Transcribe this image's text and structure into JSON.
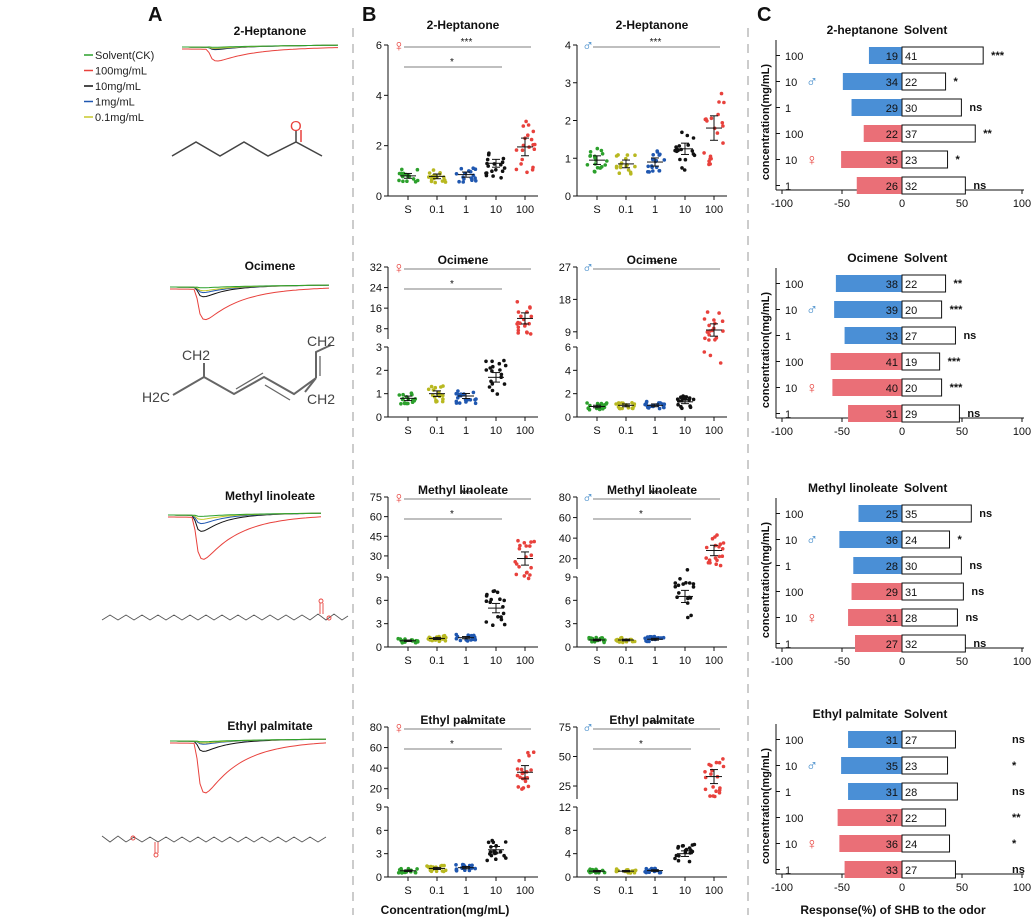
{
  "panels": {
    "A": "A",
    "B": "B",
    "C": "C"
  },
  "legend": [
    {
      "name": "Solvent(CK)",
      "color": "#2ca02c"
    },
    {
      "name": "100mg/mL",
      "color": "#e8413c"
    },
    {
      "name": "10mg/mL",
      "color": "#111111"
    },
    {
      "name": "1mg/mL",
      "color": "#1f57b0"
    },
    {
      "name": "0.1mg/mL",
      "color": "#c8c82a"
    }
  ],
  "compounds": [
    {
      "name": "2-Heptanone",
      "atom_labels": [
        "O"
      ]
    },
    {
      "name": "Ocimene",
      "atom_labels": [
        "CH2",
        "CH2",
        "H2C",
        "CH2"
      ]
    },
    {
      "name": "Methyl linoleate",
      "atom_labels": []
    },
    {
      "name": "Ethyl palmitate",
      "atom_labels": []
    }
  ],
  "symbols": {
    "female": "♀",
    "male": "♂"
  },
  "colors": {
    "S": "#2ca02c",
    "0.1": "#b8b820",
    "1": "#1f57b0",
    "10": "#111111",
    "100": "#e8413c",
    "male_bar": "#4a8fd6",
    "female_bar": "#ea6f77",
    "sex_symbol": "#e8413c",
    "male_symbol": "#3a86c8"
  },
  "xlabel_B": "Concentration(mg/mL)",
  "xlabel_C": "Response(%) of  SHB to the odor",
  "ylabel_C": "concentration(mg/mL)",
  "chart_data": [
    {
      "type": "scatter",
      "panel": "B",
      "compound": "2-Heptanone",
      "sex": "female",
      "title": "2-Heptanone",
      "categories": [
        "S",
        "0.1",
        "1",
        "10",
        "100"
      ],
      "yticks": [
        "0",
        "2",
        "4",
        "6"
      ],
      "ylim": [
        0,
        6
      ],
      "means": [
        0.8,
        0.78,
        0.85,
        1.3,
        1.95
      ],
      "significance": [
        {
          "label": "***",
          "from": "S",
          "to": "100"
        },
        {
          "label": "*",
          "from": "S",
          "to": "10"
        }
      ]
    },
    {
      "type": "scatter",
      "panel": "B",
      "compound": "2-Heptanone",
      "sex": "male",
      "title": "2-Heptanone",
      "categories": [
        "S",
        "0.1",
        "1",
        "10",
        "100"
      ],
      "yticks": [
        "0",
        "1",
        "2",
        "3",
        "4"
      ],
      "ylim": [
        0,
        4
      ],
      "means": [
        0.95,
        0.85,
        0.9,
        1.25,
        1.8
      ],
      "significance": [
        {
          "label": "***",
          "from": "S",
          "to": "100"
        }
      ]
    },
    {
      "type": "scatter",
      "panel": "B",
      "compound": "Ocimene",
      "sex": "female",
      "title": "Ocimene",
      "categories": [
        "S",
        "0.1",
        "1",
        "10",
        "100"
      ],
      "yticks_lower": [
        "0",
        "1",
        "2",
        "3"
      ],
      "ylim_lower": [
        0,
        3
      ],
      "yticks_upper": [
        "8",
        "16",
        "24",
        "32"
      ],
      "ylim_upper": [
        4,
        32
      ],
      "means": [
        0.8,
        1.0,
        0.9,
        1.7,
        12
      ],
      "significance": [
        {
          "label": "***",
          "from": "S",
          "to": "100"
        },
        {
          "label": "*",
          "from": "S",
          "to": "10"
        }
      ]
    },
    {
      "type": "scatter",
      "panel": "B",
      "compound": "Ocimene",
      "sex": "male",
      "title": "Ocimene",
      "categories": [
        "S",
        "0.1",
        "1",
        "10",
        "100"
      ],
      "yticks_lower": [
        "0",
        "2",
        "4",
        "6"
      ],
      "ylim_lower": [
        0,
        6
      ],
      "yticks_upper": [
        "9",
        "18",
        "27"
      ],
      "ylim_upper": [
        7,
        27
      ],
      "means": [
        0.9,
        1.0,
        1.0,
        1.3,
        9.5
      ],
      "significance": [
        {
          "label": "***",
          "from": "S",
          "to": "100"
        }
      ]
    },
    {
      "type": "scatter",
      "panel": "B",
      "compound": "Methyl linoleate",
      "sex": "female",
      "title": "Methyl linoleate",
      "categories": [
        "S",
        "0.1",
        "1",
        "10",
        "100"
      ],
      "yticks_lower": [
        "0",
        "3",
        "6",
        "9"
      ],
      "ylim_lower": [
        0,
        9
      ],
      "yticks_upper": [
        "30",
        "45",
        "60",
        "75"
      ],
      "ylim_upper": [
        20,
        75
      ],
      "means": [
        0.8,
        1.1,
        1.2,
        5.0,
        28
      ],
      "significance": [
        {
          "label": "***",
          "from": "S",
          "to": "100"
        },
        {
          "label": "*",
          "from": "S",
          "to": "10"
        }
      ]
    },
    {
      "type": "scatter",
      "panel": "B",
      "compound": "Methyl linoleate",
      "sex": "male",
      "title": "Methyl linoleate",
      "categories": [
        "S",
        "0.1",
        "1",
        "10",
        "100"
      ],
      "yticks_lower": [
        "0",
        "3",
        "6",
        "9"
      ],
      "ylim_lower": [
        0,
        9
      ],
      "yticks_upper": [
        "20",
        "40",
        "60",
        "80"
      ],
      "ylim_upper": [
        10,
        80
      ],
      "means": [
        0.9,
        0.9,
        1.0,
        6.5,
        28
      ],
      "significance": [
        {
          "label": "***",
          "from": "S",
          "to": "100"
        },
        {
          "label": "*",
          "from": "S",
          "to": "10"
        }
      ]
    },
    {
      "type": "scatter",
      "panel": "B",
      "compound": "Ethyl palmitate",
      "sex": "female",
      "title": "Ethyl palmitate",
      "categories": [
        "S",
        "0.1",
        "1",
        "10",
        "100"
      ],
      "yticks_lower": [
        "0",
        "3",
        "6",
        "9"
      ],
      "ylim_lower": [
        0,
        9
      ],
      "yticks_upper": [
        "20",
        "40",
        "60",
        "80"
      ],
      "ylim_upper": [
        10,
        80
      ],
      "means": [
        0.8,
        1.1,
        1.2,
        3.5,
        36
      ],
      "significance": [
        {
          "label": "***",
          "from": "S",
          "to": "100"
        },
        {
          "label": "*",
          "from": "S",
          "to": "10"
        }
      ]
    },
    {
      "type": "scatter",
      "panel": "B",
      "compound": "Ethyl palmitate",
      "sex": "male",
      "title": "Ethyl palmitate",
      "categories": [
        "S",
        "0.1",
        "1",
        "10",
        "100"
      ],
      "yticks_lower": [
        "0",
        "4",
        "8",
        "12"
      ],
      "ylim_lower": [
        0,
        12
      ],
      "yticks_upper": [
        "25",
        "50",
        "75"
      ],
      "ylim_upper": [
        14,
        75
      ],
      "means": [
        1.0,
        1.0,
        1.1,
        4.0,
        33
      ],
      "significance": [
        {
          "label": "***",
          "from": "S",
          "to": "100"
        },
        {
          "label": "*",
          "from": "S",
          "to": "10"
        }
      ]
    },
    {
      "type": "bar",
      "panel": "C",
      "title": "2-heptanone",
      "solvent_label": "Solvent",
      "categories": [
        "100",
        "10",
        "1",
        "100",
        "10",
        "1"
      ],
      "odor": [
        19,
        34,
        29,
        22,
        35,
        26
      ],
      "solvent": [
        41,
        22,
        30,
        37,
        23,
        32
      ],
      "significance": [
        "***",
        "*",
        "ns",
        "**",
        "*",
        "ns"
      ],
      "sex": [
        "male",
        "male",
        "male",
        "female",
        "female",
        "female"
      ],
      "xticks": [
        "-100",
        "-50",
        "0",
        "50",
        "100"
      ],
      "xlim": [
        -100,
        100
      ]
    },
    {
      "type": "bar",
      "panel": "C",
      "title": "Ocimene",
      "solvent_label": "Solvent",
      "categories": [
        "100",
        "10",
        "1",
        "100",
        "10",
        "1"
      ],
      "odor": [
        38,
        39,
        33,
        41,
        40,
        31
      ],
      "solvent": [
        22,
        20,
        27,
        19,
        20,
        29
      ],
      "significance": [
        "**",
        "***",
        "ns",
        "***",
        "***",
        "ns"
      ],
      "sex": [
        "male",
        "male",
        "male",
        "female",
        "female",
        "female"
      ],
      "xticks": [
        "-100",
        "-50",
        "0",
        "50",
        "100"
      ],
      "xlim": [
        -100,
        100
      ]
    },
    {
      "type": "bar",
      "panel": "C",
      "title": "Methyl linoleate",
      "solvent_label": "Solvent",
      "categories": [
        "100",
        "10",
        "1",
        "100",
        "10",
        "1"
      ],
      "odor": [
        25,
        36,
        28,
        29,
        31,
        27
      ],
      "solvent": [
        35,
        24,
        30,
        31,
        28,
        32
      ],
      "significance": [
        "ns",
        "*",
        "ns",
        "ns",
        "ns",
        "ns"
      ],
      "sex": [
        "male",
        "male",
        "male",
        "female",
        "female",
        "female"
      ],
      "xticks": [
        "-100",
        "-50",
        "0",
        "50",
        "100"
      ],
      "xlim": [
        -100,
        100
      ]
    },
    {
      "type": "bar",
      "panel": "C",
      "title": "Ethyl palmitate",
      "solvent_label": "Solvent",
      "categories": [
        "100",
        "10",
        "1",
        "100",
        "10",
        "1"
      ],
      "odor": [
        31,
        35,
        31,
        37,
        36,
        33
      ],
      "solvent": [
        27,
        23,
        28,
        22,
        24,
        27
      ],
      "significance": [
        "ns",
        "*",
        "ns",
        "**",
        "*",
        "ns"
      ],
      "sex": [
        "male",
        "male",
        "male",
        "female",
        "female",
        "female"
      ],
      "xticks": [
        "-100",
        "-50",
        "0",
        "50",
        "100"
      ],
      "xlim": [
        -100,
        100
      ]
    }
  ]
}
